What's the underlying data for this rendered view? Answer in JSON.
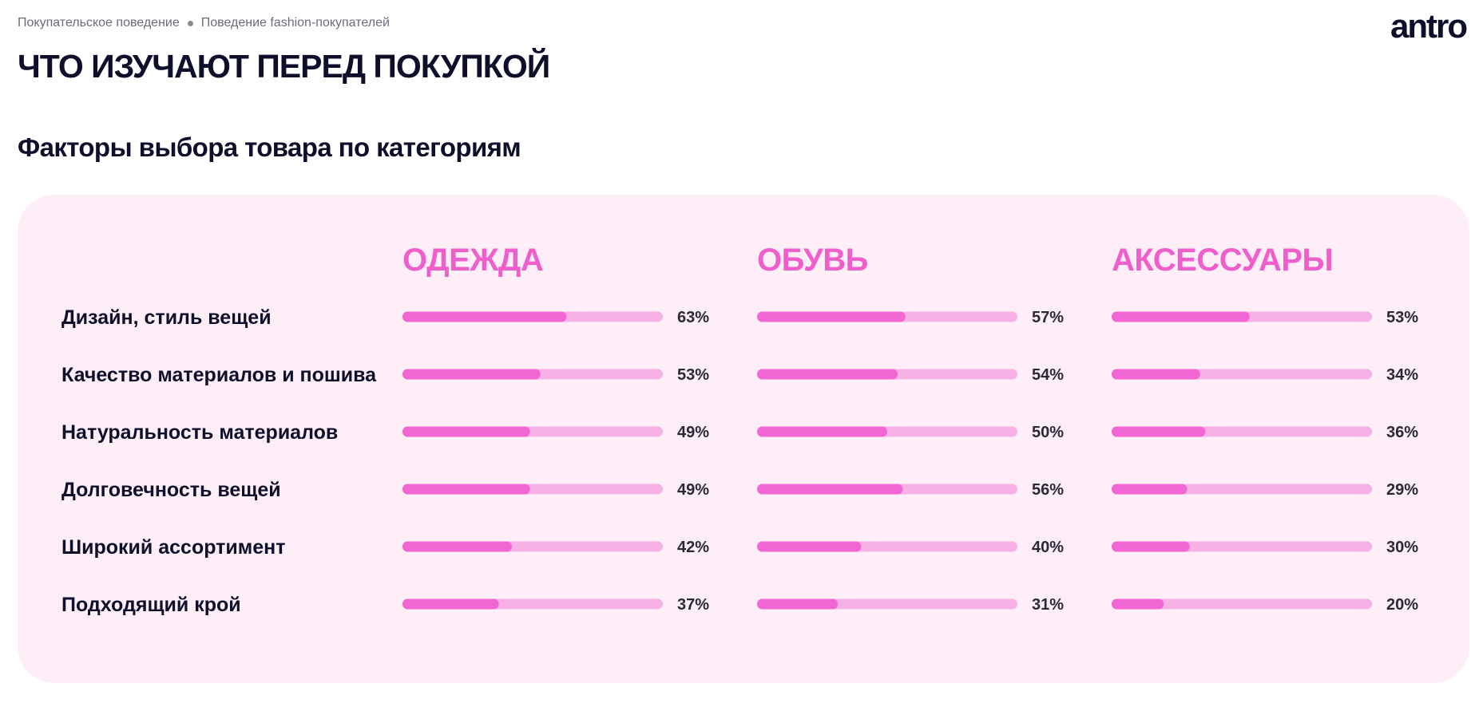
{
  "breadcrumb": {
    "item1": "Покупательское поведение",
    "item2": "Поведение fashion-покупателей"
  },
  "brand": {
    "logo": "antro"
  },
  "page_title": "ЧТО ИЗУЧАЮТ ПЕРЕД ПОКУПКОЙ",
  "section_title": "Факторы выбора товара по категориям",
  "colors": {
    "bar_fill": "#f266d3",
    "bar_track": "#f7b1e4",
    "category_title": "#ef5fcc",
    "panel_bg": "#fdeef8"
  },
  "chart_data": {
    "type": "bar",
    "orientation": "horizontal",
    "categories": [
      "Дизайн, стиль вещей",
      "Качество материалов и пошива",
      "Натуральность материалов",
      "Долговечность вещей",
      "Широкий ассортимент",
      "Подходящий крой"
    ],
    "series": [
      {
        "name": "ОДЕЖДА",
        "values": [
          63,
          53,
          49,
          49,
          42,
          37
        ],
        "labels": [
          "63%",
          "53%",
          "49%",
          "49%",
          "42%",
          "37%"
        ]
      },
      {
        "name": "ОБУВЬ",
        "values": [
          57,
          54,
          50,
          56,
          40,
          31
        ],
        "labels": [
          "57%",
          "54%",
          "50%",
          "56%",
          "40%",
          "31%"
        ]
      },
      {
        "name": "АКСЕССУАРЫ",
        "values": [
          53,
          34,
          36,
          29,
          30,
          20
        ],
        "labels": [
          "53%",
          "34%",
          "36%",
          "29%",
          "30%",
          "20%"
        ]
      }
    ],
    "unit": "%",
    "xlim": [
      0,
      100
    ],
    "grid": false
  }
}
